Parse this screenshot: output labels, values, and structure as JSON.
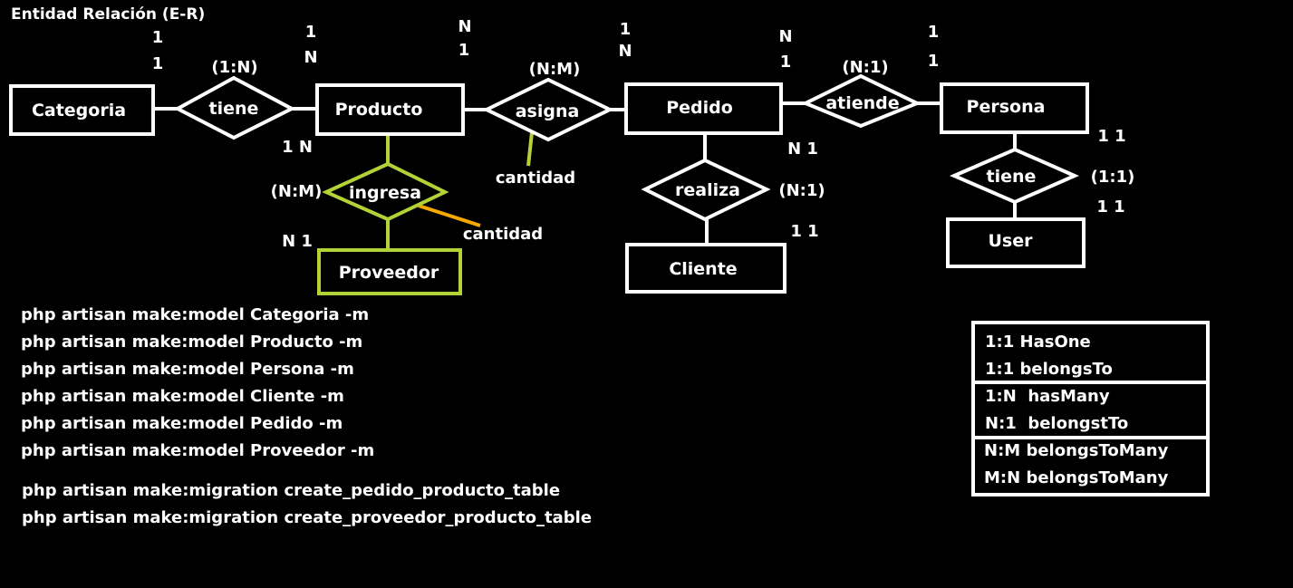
{
  "title": "Entidad Relación (E-R)",
  "entities": {
    "categoria": "Categoria",
    "producto": "Producto",
    "pedido": "Pedido",
    "persona": "Persona",
    "proveedor": "Proveedor",
    "cliente": "Cliente",
    "user": "User"
  },
  "relationships": {
    "tiene1": "tiene",
    "asigna": "asigna",
    "atiende": "atiende",
    "ingresa": "ingresa",
    "realiza": "realiza",
    "tiene2": "tiene"
  },
  "relationship_types": {
    "tiene1": "(1:N)",
    "asigna": "(N:M)",
    "atiende": "(N:1)",
    "ingresa": "(N:M)",
    "realiza": "(N:1)",
    "tiene2": "(1:1)"
  },
  "attributes": {
    "asigna_attr": "cantidad",
    "ingresa_attr": "cantidad"
  },
  "cardinalities": {
    "c_cat_top": "1",
    "c_cat_bot": "1",
    "c_prod_top": "1",
    "c_prod_bot": "N",
    "c_asig_left_top": "N",
    "c_asig_left_bot": "1",
    "c_ped_top": "1",
    "c_ped_bot": "N",
    "c_atie_left_top": "N",
    "c_atie_left_bot": "1",
    "c_per_top": "1",
    "c_per_bot": "1",
    "c_prod_below": "1 N",
    "c_prov": "N 1",
    "c_ped_right": "N 1",
    "c_cli": "1 1",
    "c_per_right": "1 1",
    "c_user": "1 1"
  },
  "commands": [
    "php artisan make:model Categoria -m",
    "php artisan make:model Producto -m",
    "php artisan make:model Persona -m",
    "php artisan make:model Cliente -m",
    "php artisan make:model Pedido -m",
    "php artisan make:model Proveedor -m"
  ],
  "migrations": [
    "php artisan make:migration create_pedido_producto_table",
    "php artisan make:migration create_proveedor_producto_table"
  ],
  "legend": [
    "1:1 HasOne",
    "1:1 belongsTo",
    "1:N  hasMany",
    "N:1  belongstTo",
    "N:M belongsToMany",
    "M:N belongsToMany"
  ],
  "colors": {
    "white": "#ffffff",
    "green": "#b2d235",
    "orange": "#f5a800"
  }
}
